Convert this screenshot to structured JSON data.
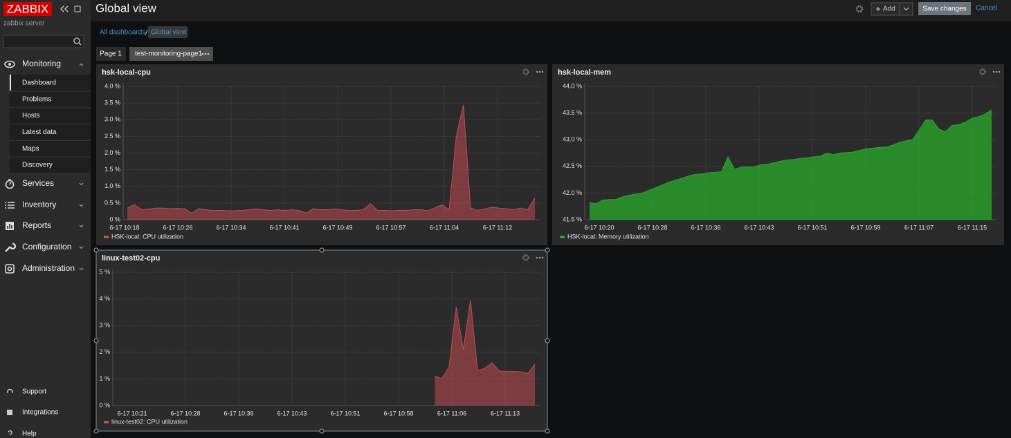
{
  "sidebar": {
    "logo": "ZABBIX",
    "server": "zabbix server",
    "menu": [
      {
        "label": "Monitoring",
        "items": [
          "Dashboard",
          "Problems",
          "Hosts",
          "Latest data",
          "Maps",
          "Discovery"
        ]
      },
      {
        "label": "Services"
      },
      {
        "label": "Inventory"
      },
      {
        "label": "Reports"
      },
      {
        "label": "Configuration"
      },
      {
        "label": "Administration"
      }
    ],
    "footer": [
      "Support",
      "Integrations",
      "Help"
    ]
  },
  "header": {
    "title": "Global view",
    "add": "Add",
    "save": "Save changes",
    "cancel": "Cancel"
  },
  "breadcrumbs": [
    "All dashboards",
    "Global view"
  ],
  "tabs": [
    "Page 1",
    "test-monitoring-page1"
  ],
  "widgets": [
    {
      "title": "hsk-local-cpu",
      "chart_data": {
        "type": "area",
        "series": [
          {
            "name": "HSK-local: CPU utilization",
            "color": "#e0525a",
            "values": [
              0.35,
              0.45,
              0.3,
              0.32,
              0.35,
              0.35,
              0.33,
              0.34,
              0.33,
              0.2,
              0.33,
              0.3,
              0.28,
              0.28,
              0.27,
              0.27,
              0.28,
              0.3,
              0.32,
              0.3,
              0.28,
              0.3,
              0.28,
              0.3,
              0.28,
              0.2,
              0.33,
              0.3,
              0.3,
              0.32,
              0.3,
              0.28,
              0.28,
              0.3,
              0.48,
              0.28,
              0.28,
              0.27,
              0.28,
              0.28,
              0.3,
              0.3,
              0.27,
              0.35,
              0.45,
              0.3,
              2.5,
              3.45,
              0.35,
              0.28,
              0.32,
              0.38,
              0.35,
              0.33,
              0.3,
              0.35,
              0.3,
              0.65
            ]
          }
        ],
        "ylim": [
          0,
          4
        ],
        "yticks": [
          {
            "value": 0,
            "label": "0 %"
          },
          {
            "value": 0.5,
            "label": "0.5 %"
          },
          {
            "value": 1,
            "label": "1.0 %"
          },
          {
            "value": 1.5,
            "label": "1.5 %"
          },
          {
            "value": 2,
            "label": "2.0 %"
          },
          {
            "value": 2.5,
            "label": "2.5 %"
          },
          {
            "value": 3,
            "label": "3.0 %"
          },
          {
            "value": 3.5,
            "label": "3.5 %"
          },
          {
            "value": 4,
            "label": "4.0 %"
          }
        ],
        "xticks": [
          "6-17 10:18",
          "6-17 10:26",
          "6-17 10:34",
          "6-17 10:41",
          "6-17 10:49",
          "6-17 10:57",
          "6-17 11:04",
          "6-17 11:12"
        ],
        "grid": true
      }
    },
    {
      "title": "hsk-local-mem",
      "chart_data": {
        "type": "area",
        "series": [
          {
            "name": "HSK-local: Memory utilization",
            "color": "#2bb52b",
            "values": [
              41.82,
              41.8,
              41.87,
              41.88,
              41.88,
              41.93,
              41.96,
              41.98,
              42.0,
              42.05,
              42.1,
              42.15,
              42.2,
              42.24,
              42.28,
              42.32,
              42.35,
              42.36,
              42.38,
              42.39,
              42.4,
              42.68,
              42.45,
              42.48,
              42.49,
              42.49,
              42.53,
              42.54,
              42.57,
              42.6,
              42.62,
              42.63,
              42.65,
              42.66,
              42.68,
              42.69,
              42.75,
              42.72,
              42.75,
              42.76,
              42.77,
              42.8,
              42.83,
              42.84,
              42.86,
              42.86,
              42.9,
              42.95,
              42.98,
              43.0,
              43.18,
              43.37,
              43.37,
              43.2,
              43.15,
              43.27,
              43.28,
              43.33,
              43.4,
              43.43,
              43.48,
              43.56
            ]
          }
        ],
        "ylim": [
          41.5,
          44
        ],
        "yticks": [
          {
            "value": 41.5,
            "label": "41.5 %"
          },
          {
            "value": 42,
            "label": "42.0 %"
          },
          {
            "value": 42.5,
            "label": "42.5 %"
          },
          {
            "value": 43,
            "label": "43.0 %"
          },
          {
            "value": 43.5,
            "label": "43.5 %"
          },
          {
            "value": 44,
            "label": "44.0 %"
          }
        ],
        "xticks": [
          "6-17 10:20",
          "6-17 10:28",
          "6-17 10:36",
          "6-17 10:43",
          "6-17 10:51",
          "6-17 10:59",
          "6-17 11:07",
          "6-17 11:15"
        ],
        "grid": true
      }
    },
    {
      "title": "linux-test02-cpu",
      "chart_data": {
        "type": "area",
        "series": [
          {
            "name": "linux-test02: CPU utilization",
            "color": "#e0525a",
            "values": [
              null,
              null,
              null,
              null,
              null,
              null,
              null,
              null,
              null,
              null,
              null,
              null,
              null,
              null,
              null,
              null,
              null,
              null,
              null,
              null,
              null,
              null,
              null,
              null,
              null,
              null,
              null,
              null,
              null,
              null,
              null,
              null,
              null,
              null,
              null,
              null,
              null,
              null,
              null,
              null,
              null,
              null,
              null,
              null,
              null,
              1.1,
              1.0,
              1.45,
              3.7,
              2.1,
              3.95,
              1.3,
              1.4,
              1.6,
              1.3,
              1.28,
              1.28,
              1.27,
              1.2,
              1.55
            ]
          }
        ],
        "ylim": [
          0,
          5
        ],
        "yticks": [
          {
            "value": 0,
            "label": "0 %"
          },
          {
            "value": 1,
            "label": "1 %"
          },
          {
            "value": 2,
            "label": "2 %"
          },
          {
            "value": 3,
            "label": "3 %"
          },
          {
            "value": 4,
            "label": "4 %"
          },
          {
            "value": 5,
            "label": "5 %"
          }
        ],
        "xticks": [
          "6-17 10:21",
          "6-17 10:28",
          "6-17 10:36",
          "6-17 10:43",
          "6-17 10:51",
          "6-17 10:58",
          "6-17 11:06",
          "6-17 11:13"
        ],
        "grid": true
      }
    }
  ]
}
